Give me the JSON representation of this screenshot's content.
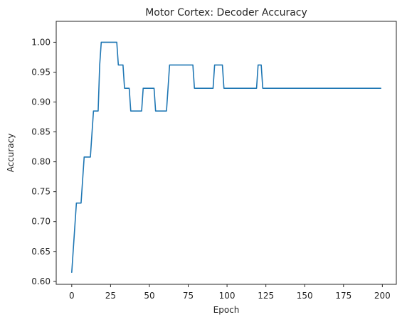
{
  "chart_data": {
    "type": "line",
    "title": "Motor Cortex: Decoder Accuracy",
    "xlabel": "Epoch",
    "ylabel": "Accuracy",
    "xlim": [
      -10,
      209
    ],
    "ylim": [
      0.595,
      1.035
    ],
    "xticks": [
      0,
      25,
      50,
      75,
      100,
      125,
      150,
      175,
      200
    ],
    "yticks": [
      0.6,
      0.65,
      0.7,
      0.75,
      0.8,
      0.85,
      0.9,
      0.95,
      1.0
    ],
    "ytick_labels": [
      "0.60",
      "0.65",
      "0.70",
      "0.75",
      "0.80",
      "0.85",
      "0.90",
      "0.95",
      "1.00"
    ],
    "grid": false,
    "series": [
      {
        "color": "#1f77b4",
        "x": [
          0,
          3,
          6,
          8,
          12,
          14,
          17,
          18,
          19,
          29,
          30,
          33,
          34,
          37,
          38,
          45,
          46,
          53,
          54,
          61,
          62,
          63,
          78,
          79,
          91,
          92,
          97,
          98,
          119,
          120,
          122,
          123,
          199
        ],
        "y": [
          0.615,
          0.731,
          0.731,
          0.808,
          0.808,
          0.885,
          0.885,
          0.962,
          1.0,
          1.0,
          0.962,
          0.962,
          0.923,
          0.923,
          0.885,
          0.885,
          0.923,
          0.923,
          0.885,
          0.885,
          0.923,
          0.962,
          0.962,
          0.923,
          0.923,
          0.962,
          0.962,
          0.923,
          0.923,
          0.962,
          0.962,
          0.923,
          0.923
        ]
      }
    ]
  }
}
